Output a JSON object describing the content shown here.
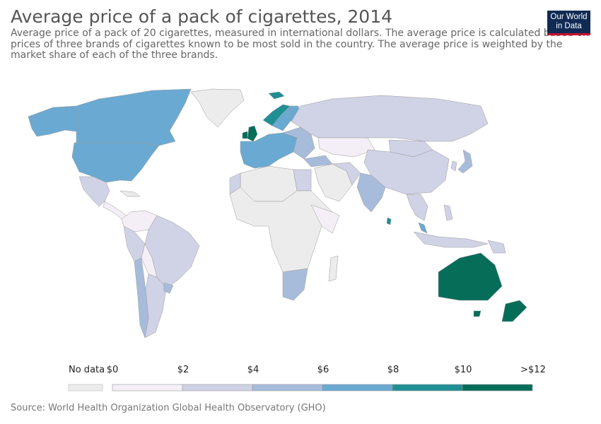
{
  "title": "Average price of a pack of cigarettes, 2014",
  "subtitle": "Average price of a pack of 20 cigarettes, measured in international dollars. The average price is calculated based on prices of three brands of cigarettes known to be most sold in the country. The average price is weighted by the market share of each of the three brands.",
  "logo": {
    "line1": "Our World",
    "line2": "in Data"
  },
  "source": "Source: World Health Organization Global Health Observatory (GHO)",
  "colors": {
    "no_data": "#ececec",
    "bin_0_2": "#f4eff7",
    "bin_2_4": "#d0d2e6",
    "bin_4_6": "#a7bcdb",
    "bin_6_8": "#6aa9d2",
    "bin_8_10": "#1f8f93",
    "bin_10_12": "#066d59",
    "border": "#9a9a9a"
  },
  "legend": {
    "no_data_label": "No data",
    "ticks": [
      "$0",
      "$2",
      "$4",
      "$6",
      "$8",
      "$10",
      ">$12"
    ]
  },
  "chart_data": {
    "type": "choropleth",
    "year": 2014,
    "bins": [
      {
        "range": "$0–$2",
        "color": "#f4eff7"
      },
      {
        "range": "$2–$4",
        "color": "#d0d2e6"
      },
      {
        "range": "$4–$6",
        "color": "#a7bcdb"
      },
      {
        "range": "$6–$8",
        "color": "#6aa9d2"
      },
      {
        "range": "$8–$10",
        "color": "#1f8f93"
      },
      {
        "range": "$10–$12",
        "color": "#066d59"
      }
    ],
    "regions": [
      {
        "name": "Canada",
        "bin": "bin_6_8"
      },
      {
        "name": "United States",
        "bin": "bin_6_8"
      },
      {
        "name": "Alaska",
        "bin": "bin_6_8"
      },
      {
        "name": "Greenland",
        "bin": "no_data"
      },
      {
        "name": "Mexico",
        "bin": "bin_2_4"
      },
      {
        "name": "Central America",
        "bin": "bin_0_2"
      },
      {
        "name": "Cuba",
        "bin": "no_data"
      },
      {
        "name": "Brazil",
        "bin": "bin_2_4"
      },
      {
        "name": "Colombia / Venezuela",
        "bin": "bin_0_2"
      },
      {
        "name": "Peru",
        "bin": "bin_2_4"
      },
      {
        "name": "Bolivia",
        "bin": "bin_0_2"
      },
      {
        "name": "Chile",
        "bin": "bin_4_6"
      },
      {
        "name": "Argentina",
        "bin": "bin_2_4"
      },
      {
        "name": "Uruguay",
        "bin": "bin_4_6"
      },
      {
        "name": "Iceland",
        "bin": "bin_8_10"
      },
      {
        "name": "Norway",
        "bin": "bin_8_10"
      },
      {
        "name": "Sweden",
        "bin": "bin_6_8"
      },
      {
        "name": "Finland",
        "bin": "bin_6_8"
      },
      {
        "name": "United Kingdom",
        "bin": "bin_10_12"
      },
      {
        "name": "Ireland",
        "bin": "bin_10_12"
      },
      {
        "name": "Western Europe",
        "bin": "bin_6_8"
      },
      {
        "name": "Eastern Europe",
        "bin": "bin_4_6"
      },
      {
        "name": "Russia",
        "bin": "bin_2_4"
      },
      {
        "name": "Kazakhstan",
        "bin": "bin_0_2"
      },
      {
        "name": "China",
        "bin": "bin_2_4"
      },
      {
        "name": "Mongolia",
        "bin": "bin_2_4"
      },
      {
        "name": "Japan",
        "bin": "bin_4_6"
      },
      {
        "name": "South Korea",
        "bin": "bin_2_4"
      },
      {
        "name": "India",
        "bin": "bin_4_6"
      },
      {
        "name": "Sri Lanka",
        "bin": "bin_8_10"
      },
      {
        "name": "Middle East",
        "bin": "no_data"
      },
      {
        "name": "Turkey",
        "bin": "bin_4_6"
      },
      {
        "name": "Iran",
        "bin": "bin_2_4"
      },
      {
        "name": "Southeast Asia",
        "bin": "bin_2_4"
      },
      {
        "name": "Malaysia",
        "bin": "bin_6_8"
      },
      {
        "name": "Indonesia",
        "bin": "bin_2_4"
      },
      {
        "name": "Philippines",
        "bin": "bin_2_4"
      },
      {
        "name": "Papua New Guinea",
        "bin": "bin_2_4"
      },
      {
        "name": "North Africa",
        "bin": "bin_2_4"
      },
      {
        "name": "Algeria / Libya",
        "bin": "no_data"
      },
      {
        "name": "Egypt",
        "bin": "bin_2_4"
      },
      {
        "name": "Sub-Saharan Africa",
        "bin": "no_data"
      },
      {
        "name": "East Africa",
        "bin": "bin_0_2"
      },
      {
        "name": "South Africa",
        "bin": "bin_4_6"
      },
      {
        "name": "Madagascar",
        "bin": "no_data"
      },
      {
        "name": "Australia",
        "bin": "bin_10_12"
      },
      {
        "name": "New Zealand",
        "bin": "bin_10_12"
      },
      {
        "name": "Tasmania",
        "bin": "bin_10_12"
      }
    ]
  }
}
